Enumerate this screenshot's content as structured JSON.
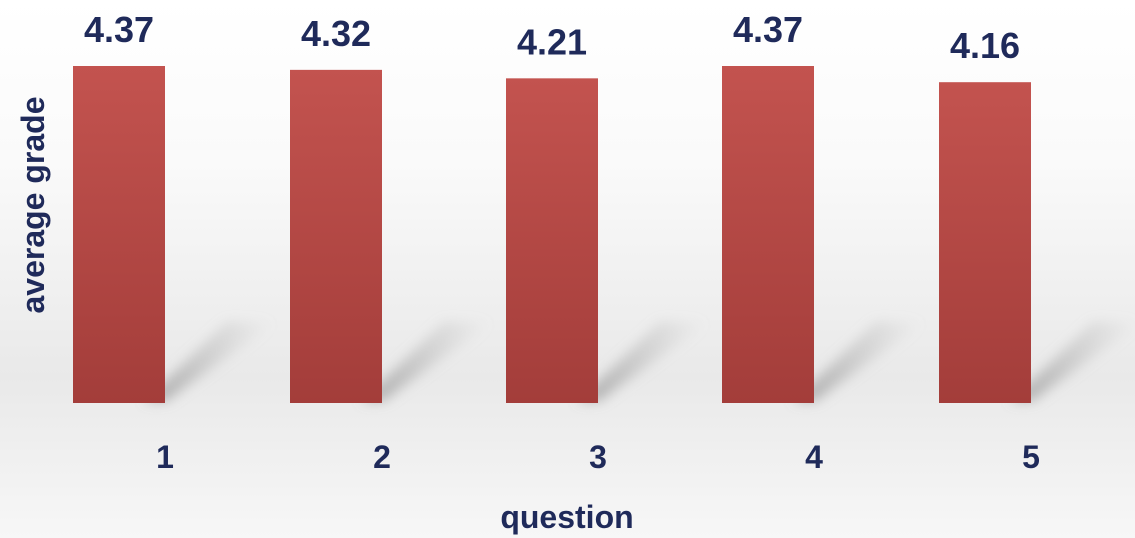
{
  "chart_data": {
    "type": "bar",
    "categories": [
      "1",
      "2",
      "3",
      "4",
      "5"
    ],
    "values": [
      4.37,
      4.32,
      4.21,
      4.37,
      4.16
    ],
    "value_labels": [
      "4.37",
      "4.32",
      "4.21",
      "4.37",
      "4.16"
    ],
    "xlabel": "question",
    "ylabel": "average grade",
    "ylim": [
      0,
      4.37
    ],
    "grid": false,
    "legend": "none"
  },
  "colors": {
    "bar_top": "#c3534f",
    "bar_bottom": "#a33d3a",
    "text": "#1f2a5a",
    "shadow": "#9a9a9a"
  }
}
